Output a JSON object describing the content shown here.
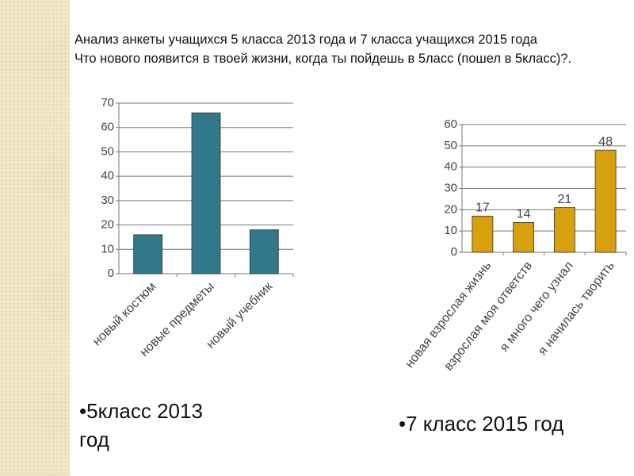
{
  "heading": [
    "Анализ  анкеты  учащихся 5 класса 2013 года и 7 класса учащихся 2015 года",
    "Что нового появится в твоей жизни, когда ты пойдешь в 5ласс (пошел в 5класс)?."
  ],
  "chart_data": [
    {
      "type": "bar",
      "categories": [
        "новый костюм",
        "новые предметы",
        "новый учебник"
      ],
      "values": [
        16,
        66,
        18
      ],
      "color": "#31788a",
      "ylim": [
        0,
        70
      ],
      "yticks": [
        0,
        10,
        20,
        30,
        40,
        50,
        60,
        70
      ],
      "grid": true,
      "data_labels": false
    },
    {
      "type": "bar",
      "categories": [
        "новая взрослая жизнь",
        "взрослая  моя ответств",
        "я  много чего узнал",
        "я начилась творить"
      ],
      "values": [
        17,
        14,
        21,
        48
      ],
      "color": "#d9a00d",
      "ylim": [
        0,
        60
      ],
      "yticks": [
        0,
        10,
        20,
        30,
        40,
        50,
        60
      ],
      "grid": true,
      "data_labels": true
    }
  ],
  "captions": [
    "•5класс 2013 год",
    "•7 класс 2015 год"
  ]
}
